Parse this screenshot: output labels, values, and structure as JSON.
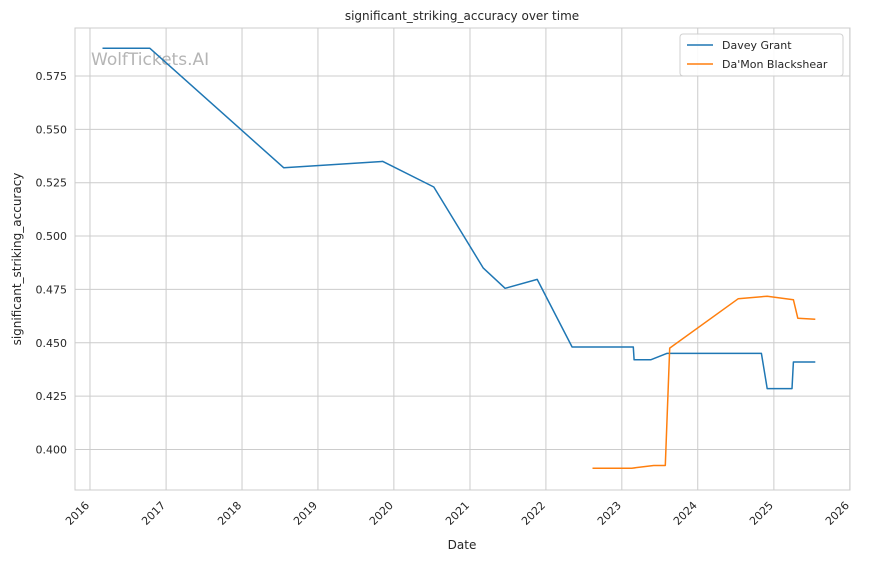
{
  "watermark": "WolfTickets.AI",
  "colors": {
    "series_0": "#1f77b4",
    "series_1": "#ff7f0e",
    "grid": "#cccccc",
    "axes": "#cccccc"
  },
  "chart_data": {
    "type": "line",
    "title": "significant_striking_accuracy over time",
    "xlabel": "Date",
    "ylabel": "significant_striking_accuracy",
    "x_ticks": [
      "2016",
      "2017",
      "2018",
      "2019",
      "2020",
      "2021",
      "2022",
      "2023",
      "2024",
      "2025",
      "2026"
    ],
    "y_ticks": [
      "0.400",
      "0.425",
      "0.450",
      "0.475",
      "0.500",
      "0.525",
      "0.550",
      "0.575"
    ],
    "xlim": [
      "2015-10-21",
      "2026-01-02"
    ],
    "ylim": [
      0.381,
      0.5975
    ],
    "grid": true,
    "legend_position": "upper right",
    "series": [
      {
        "name": "Davey Grant",
        "points": [
          [
            "2016-03-01",
            0.588
          ],
          [
            "2016-10-15",
            0.588
          ],
          [
            "2018-07-21",
            0.532
          ],
          [
            "2019-11-09",
            0.535
          ],
          [
            "2020-07-11",
            0.523
          ],
          [
            "2021-03-06",
            0.485
          ],
          [
            "2021-06-19",
            0.4755
          ],
          [
            "2021-11-20",
            0.4797
          ],
          [
            "2022-05-07",
            0.448
          ],
          [
            "2023-02-25",
            0.448
          ],
          [
            "2023-03-01",
            0.442
          ],
          [
            "2023-05-20",
            0.442
          ],
          [
            "2023-08-05",
            0.445
          ],
          [
            "2024-11-02",
            0.445
          ],
          [
            "2024-11-30",
            0.4285
          ],
          [
            "2025-03-29",
            0.4285
          ],
          [
            "2025-04-05",
            0.441
          ],
          [
            "2025-07-19",
            0.441
          ]
        ]
      },
      {
        "name": "Da'Mon Blackshear",
        "points": [
          [
            "2022-08-13",
            0.3912
          ],
          [
            "2023-02-18",
            0.3912
          ],
          [
            "2023-06-03",
            0.3925
          ],
          [
            "2023-07-29",
            0.3925
          ],
          [
            "2023-08-19",
            0.4475
          ],
          [
            "2024-07-13",
            0.4706
          ],
          [
            "2024-11-30",
            0.4718
          ],
          [
            "2025-04-05",
            0.4702
          ],
          [
            "2025-04-26",
            0.4615
          ],
          [
            "2025-07-19",
            0.461
          ]
        ]
      }
    ]
  }
}
